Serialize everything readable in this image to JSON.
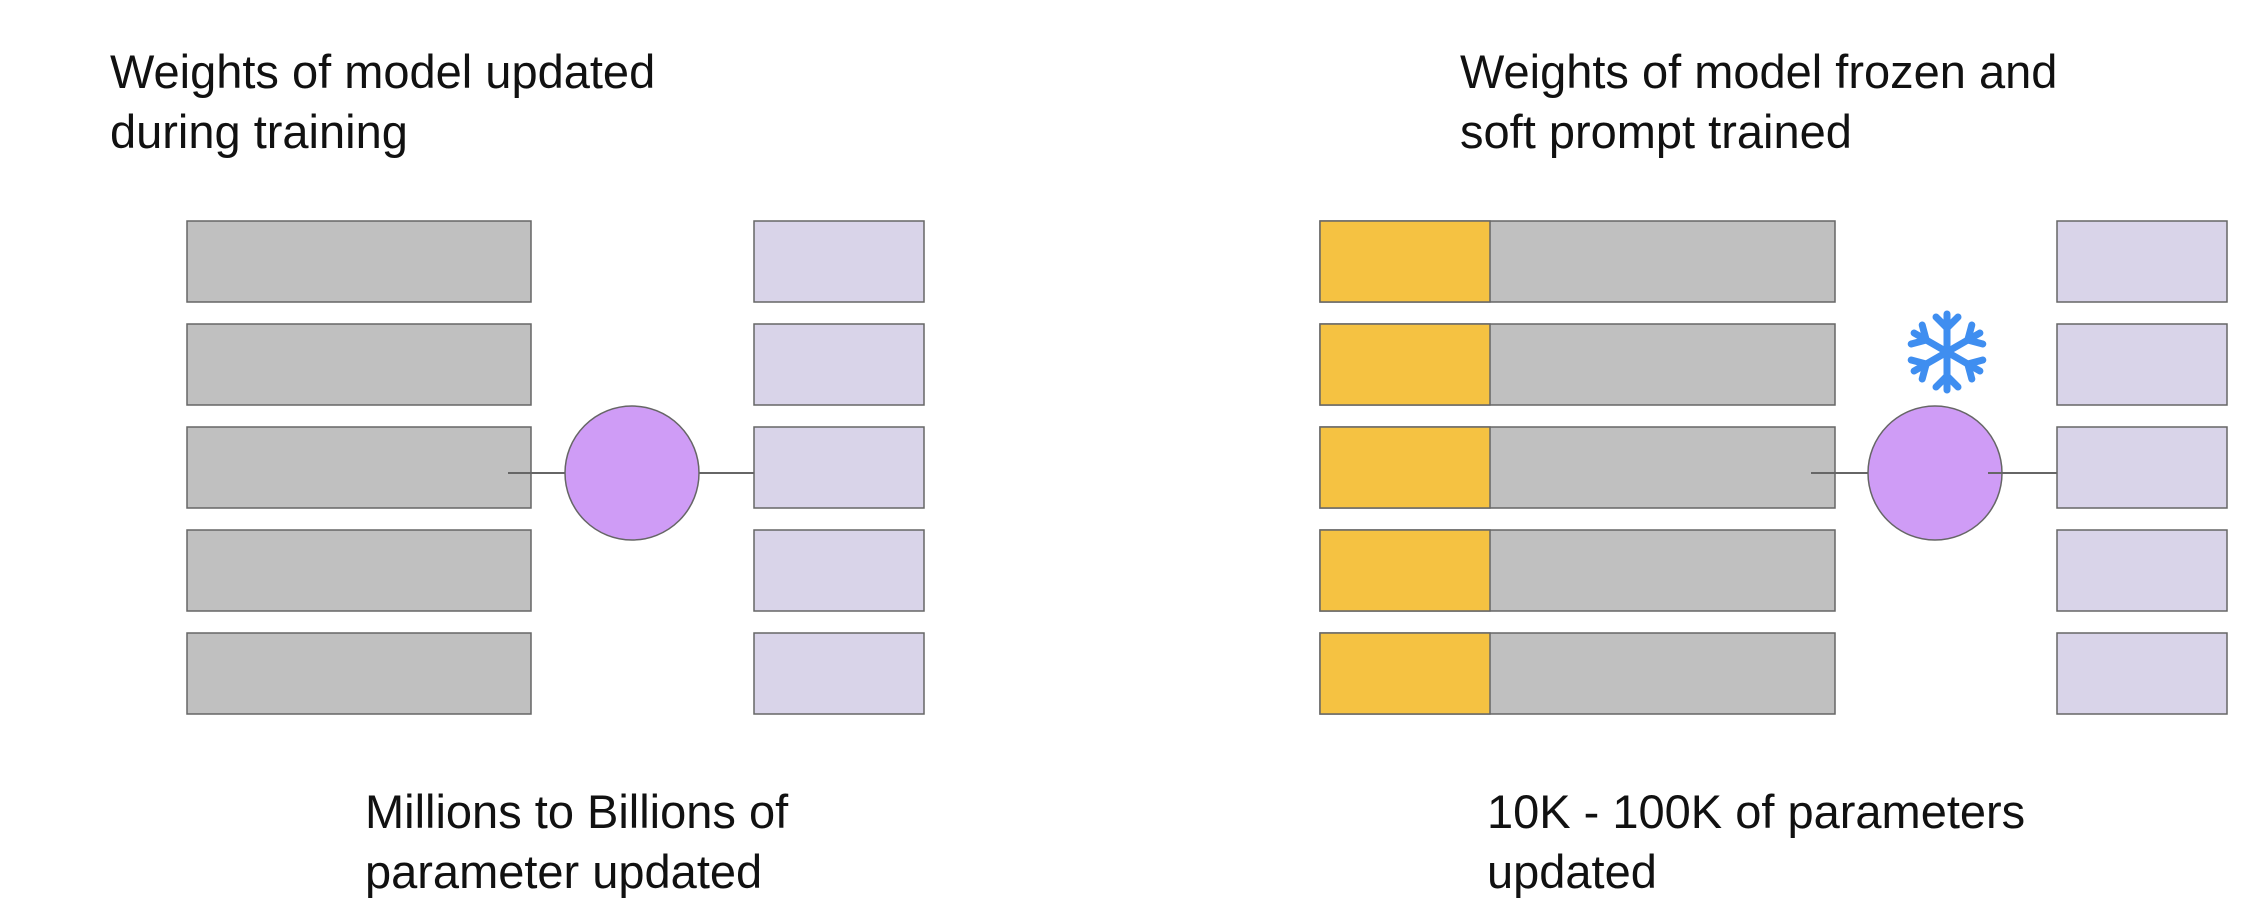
{
  "left_panel": {
    "title": [
      "Weights of model updated",
      "during training"
    ],
    "caption": [
      "Millions to Billions of",
      "parameter updated"
    ]
  },
  "right_panel": {
    "title": [
      "Weights of model frozen and",
      "soft prompt trained"
    ],
    "caption": [
      "10K - 100K of parameters",
      "updated"
    ],
    "frozen_icon": "snowflake-icon"
  },
  "colors": {
    "input_token": "#c0c0c0",
    "soft_prompt": "#f5c242",
    "output_token": "#d9d4e9",
    "model": "#cf9cf6",
    "snowflake": "#3f8ef0",
    "stroke": "#666666"
  }
}
